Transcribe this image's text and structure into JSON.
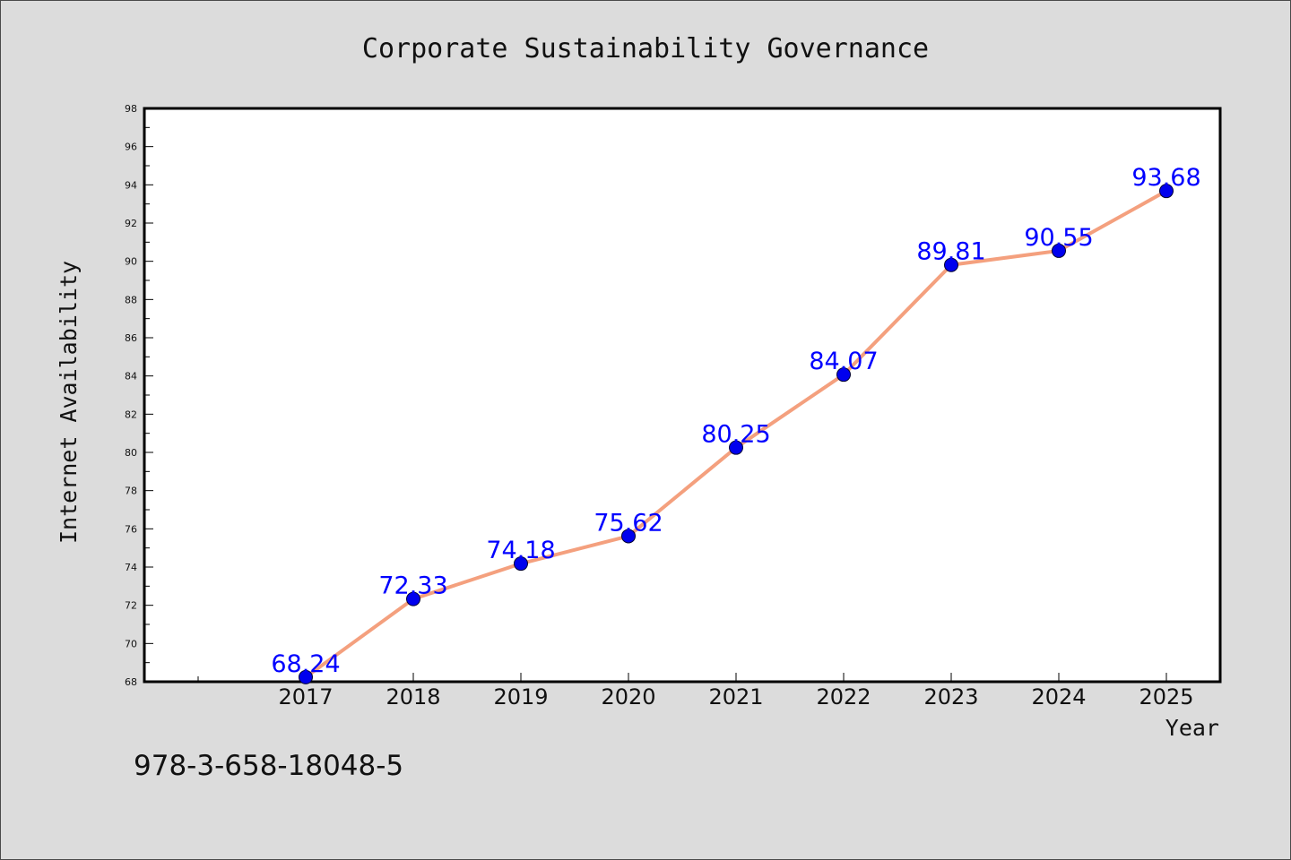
{
  "chart_data": {
    "type": "line",
    "title": "Corporate Sustainability Governance",
    "xlabel": "Year",
    "ylabel": "Internet Availability",
    "x": [
      2017,
      2018,
      2019,
      2020,
      2021,
      2022,
      2023,
      2024,
      2025
    ],
    "x_tick_labels": [
      "2017",
      "2018",
      "2019",
      "2020",
      "2021",
      "2022",
      "2023",
      "2024",
      "2025"
    ],
    "xlim": [
      2015.5,
      2025.5
    ],
    "series": [
      {
        "values": [
          68.24,
          72.33,
          74.18,
          75.62,
          80.25,
          84.07,
          89.81,
          90.55,
          93.68
        ],
        "labels": [
          "68.24",
          "72.33",
          "74.18",
          "75.62",
          "80.25",
          "84.07",
          "89.81",
          "90.55",
          "93.68"
        ],
        "line_color": "#f4a07e",
        "marker_color": "#0000ee"
      }
    ],
    "ylim": [
      68,
      98
    ],
    "y_ticks": [
      "68",
      "70",
      "72",
      "74",
      "76",
      "78",
      "80",
      "82",
      "84",
      "86",
      "88",
      "90",
      "92",
      "94",
      "96",
      "98"
    ],
    "grid": false,
    "label_color": "#0000ff"
  },
  "footer": {
    "code": "978-3-658-18048-5"
  },
  "colors": {
    "background": "#dcdcdc",
    "plot_background": "#ffffff",
    "axis": "#000000"
  }
}
